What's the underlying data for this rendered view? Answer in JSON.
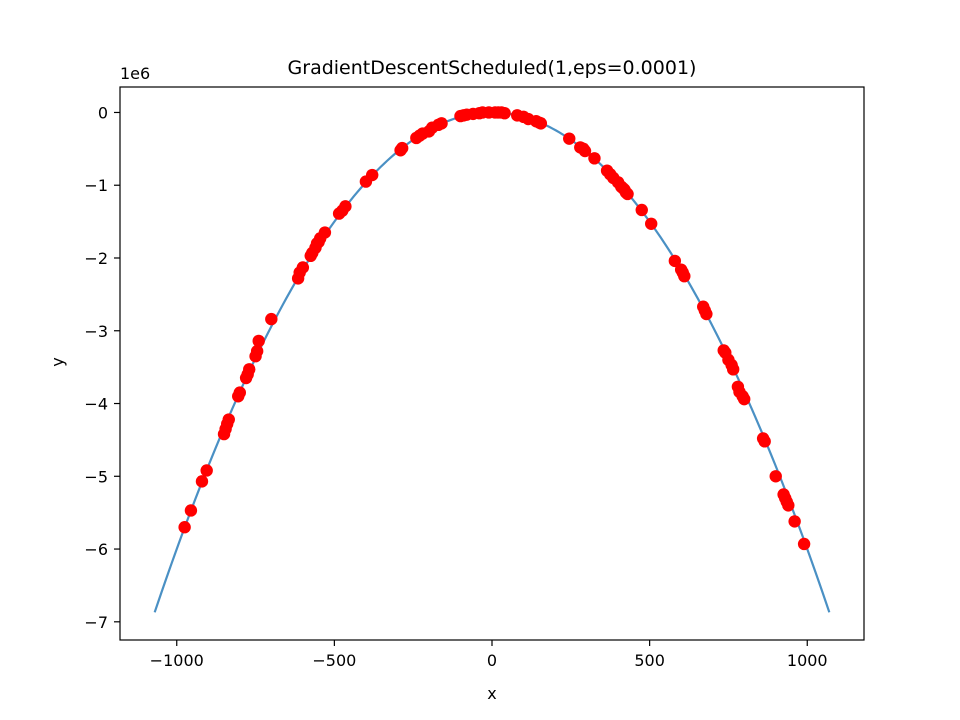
{
  "chart_data": {
    "type": "scatter",
    "title": "GradientDescentScheduled(1,eps=0.0001)",
    "xlabel": "x",
    "ylabel": "y",
    "offset_label": "1e6",
    "xlim": [
      -1180,
      1180
    ],
    "ylim": [
      -7.25,
      0.35
    ],
    "xticks": [
      -1000,
      -500,
      0,
      500,
      1000
    ],
    "xtick_labels": [
      "−1000",
      "−500",
      "0",
      "500",
      "1000"
    ],
    "yticks": [
      0,
      -1,
      -2,
      -3,
      -4,
      -5,
      -6,
      -7
    ],
    "ytick_labels": [
      "0",
      "−1",
      "−2",
      "−3",
      "−4",
      "−5",
      "−6",
      "−7"
    ],
    "grid": false,
    "colors": {
      "curve": "#4a90c4",
      "points": "#ff0000"
    },
    "series": [
      {
        "kind": "line",
        "function": "y = -6.0 * x^2 (in units of 1e6 after scaling)",
        "x": [
          -1070,
          -1000,
          -900,
          -800,
          -700,
          -600,
          -500,
          -400,
          -300,
          -200,
          -100,
          0,
          100,
          200,
          300,
          400,
          500,
          600,
          700,
          800,
          900,
          1000,
          1070
        ],
        "values": [
          -6.87,
          -6.0,
          -4.86,
          -3.84,
          -2.94,
          -2.16,
          -1.5,
          -0.96,
          -0.54,
          -0.24,
          -0.06,
          0.0,
          -0.06,
          -0.24,
          -0.54,
          -0.96,
          -1.5,
          -2.16,
          -2.94,
          -3.84,
          -4.86,
          -6.0,
          -6.87
        ]
      },
      {
        "kind": "scatter",
        "x": [
          -975,
          -955,
          -920,
          -905,
          -850,
          -845,
          -840,
          -835,
          -805,
          -800,
          -780,
          -775,
          -770,
          -750,
          -745,
          -740,
          -700,
          -615,
          -610,
          -600,
          -575,
          -570,
          -560,
          -555,
          -550,
          -545,
          -530,
          -485,
          -475,
          -465,
          -400,
          -380,
          -290,
          -285,
          -240,
          -230,
          -220,
          -200,
          -190,
          -170,
          -160,
          -100,
          -90,
          -80,
          -60,
          -40,
          -30,
          -10,
          10,
          20,
          30,
          40,
          80,
          100,
          115,
          140,
          150,
          155,
          245,
          280,
          290,
          295,
          325,
          365,
          375,
          385,
          400,
          410,
          415,
          420,
          425,
          430,
          475,
          505,
          580,
          600,
          605,
          610,
          670,
          675,
          680,
          735,
          740,
          750,
          760,
          765,
          780,
          785,
          795,
          800,
          860,
          865,
          900,
          925,
          930,
          935,
          940,
          960,
          990
        ],
        "values": [
          -5.7,
          -5.47,
          -5.07,
          -4.92,
          -4.42,
          -4.35,
          -4.28,
          -4.22,
          -3.9,
          -3.85,
          -3.65,
          -3.6,
          -3.53,
          -3.35,
          -3.28,
          -3.14,
          -2.84,
          -2.28,
          -2.2,
          -2.13,
          -1.97,
          -1.93,
          -1.86,
          -1.8,
          -1.78,
          -1.73,
          -1.65,
          -1.39,
          -1.35,
          -1.29,
          -0.95,
          -0.86,
          -0.52,
          -0.49,
          -0.35,
          -0.32,
          -0.29,
          -0.26,
          -0.21,
          -0.17,
          -0.15,
          -0.05,
          -0.04,
          -0.03,
          -0.02,
          -0.01,
          0.0,
          0.0,
          0.0,
          0.0,
          0.0,
          -0.01,
          -0.04,
          -0.06,
          -0.09,
          -0.12,
          -0.14,
          -0.15,
          -0.36,
          -0.48,
          -0.5,
          -0.53,
          -0.63,
          -0.8,
          -0.85,
          -0.9,
          -0.96,
          -1.02,
          -1.04,
          -1.06,
          -1.1,
          -1.12,
          -1.34,
          -1.53,
          -2.04,
          -2.16,
          -2.2,
          -2.25,
          -2.67,
          -2.72,
          -2.77,
          -3.27,
          -3.3,
          -3.4,
          -3.47,
          -3.53,
          -3.77,
          -3.84,
          -3.9,
          -3.94,
          -4.48,
          -4.52,
          -5.0,
          -5.25,
          -5.3,
          -5.35,
          -5.4,
          -5.62,
          -5.93
        ]
      }
    ]
  }
}
